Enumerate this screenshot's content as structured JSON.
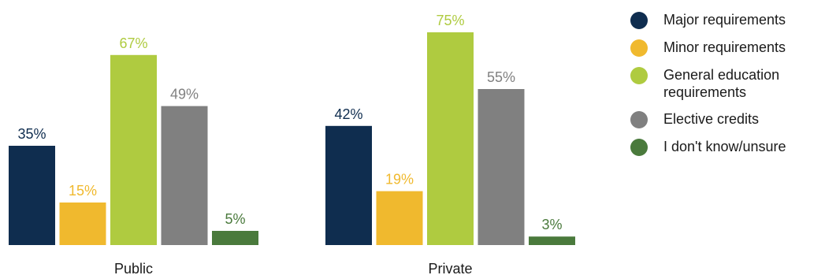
{
  "chart_data": {
    "type": "bar",
    "categories": [
      "Public",
      "Private"
    ],
    "series": [
      {
        "name": "Major requirements",
        "color": "#0f2d4f",
        "values": [
          35,
          42
        ],
        "labels": [
          "35%",
          "42%"
        ]
      },
      {
        "name": "Minor requirements",
        "color": "#f0b92e",
        "values": [
          15,
          19
        ],
        "labels": [
          "15%",
          "19%"
        ]
      },
      {
        "name": "General education requirements",
        "color": "#afcb40",
        "values": [
          67,
          75
        ],
        "labels": [
          "67%",
          "75%"
        ]
      },
      {
        "name": "Elective credits",
        "color": "#808080",
        "values": [
          49,
          55
        ],
        "labels": [
          "49%",
          "55%"
        ]
      },
      {
        "name": "I don't know/unsure",
        "color": "#4a7a3c",
        "values": [
          5,
          3
        ],
        "labels": [
          "5%",
          "3%"
        ]
      }
    ],
    "ylim": [
      0,
      75
    ],
    "legend_position": "right",
    "grid": false
  }
}
